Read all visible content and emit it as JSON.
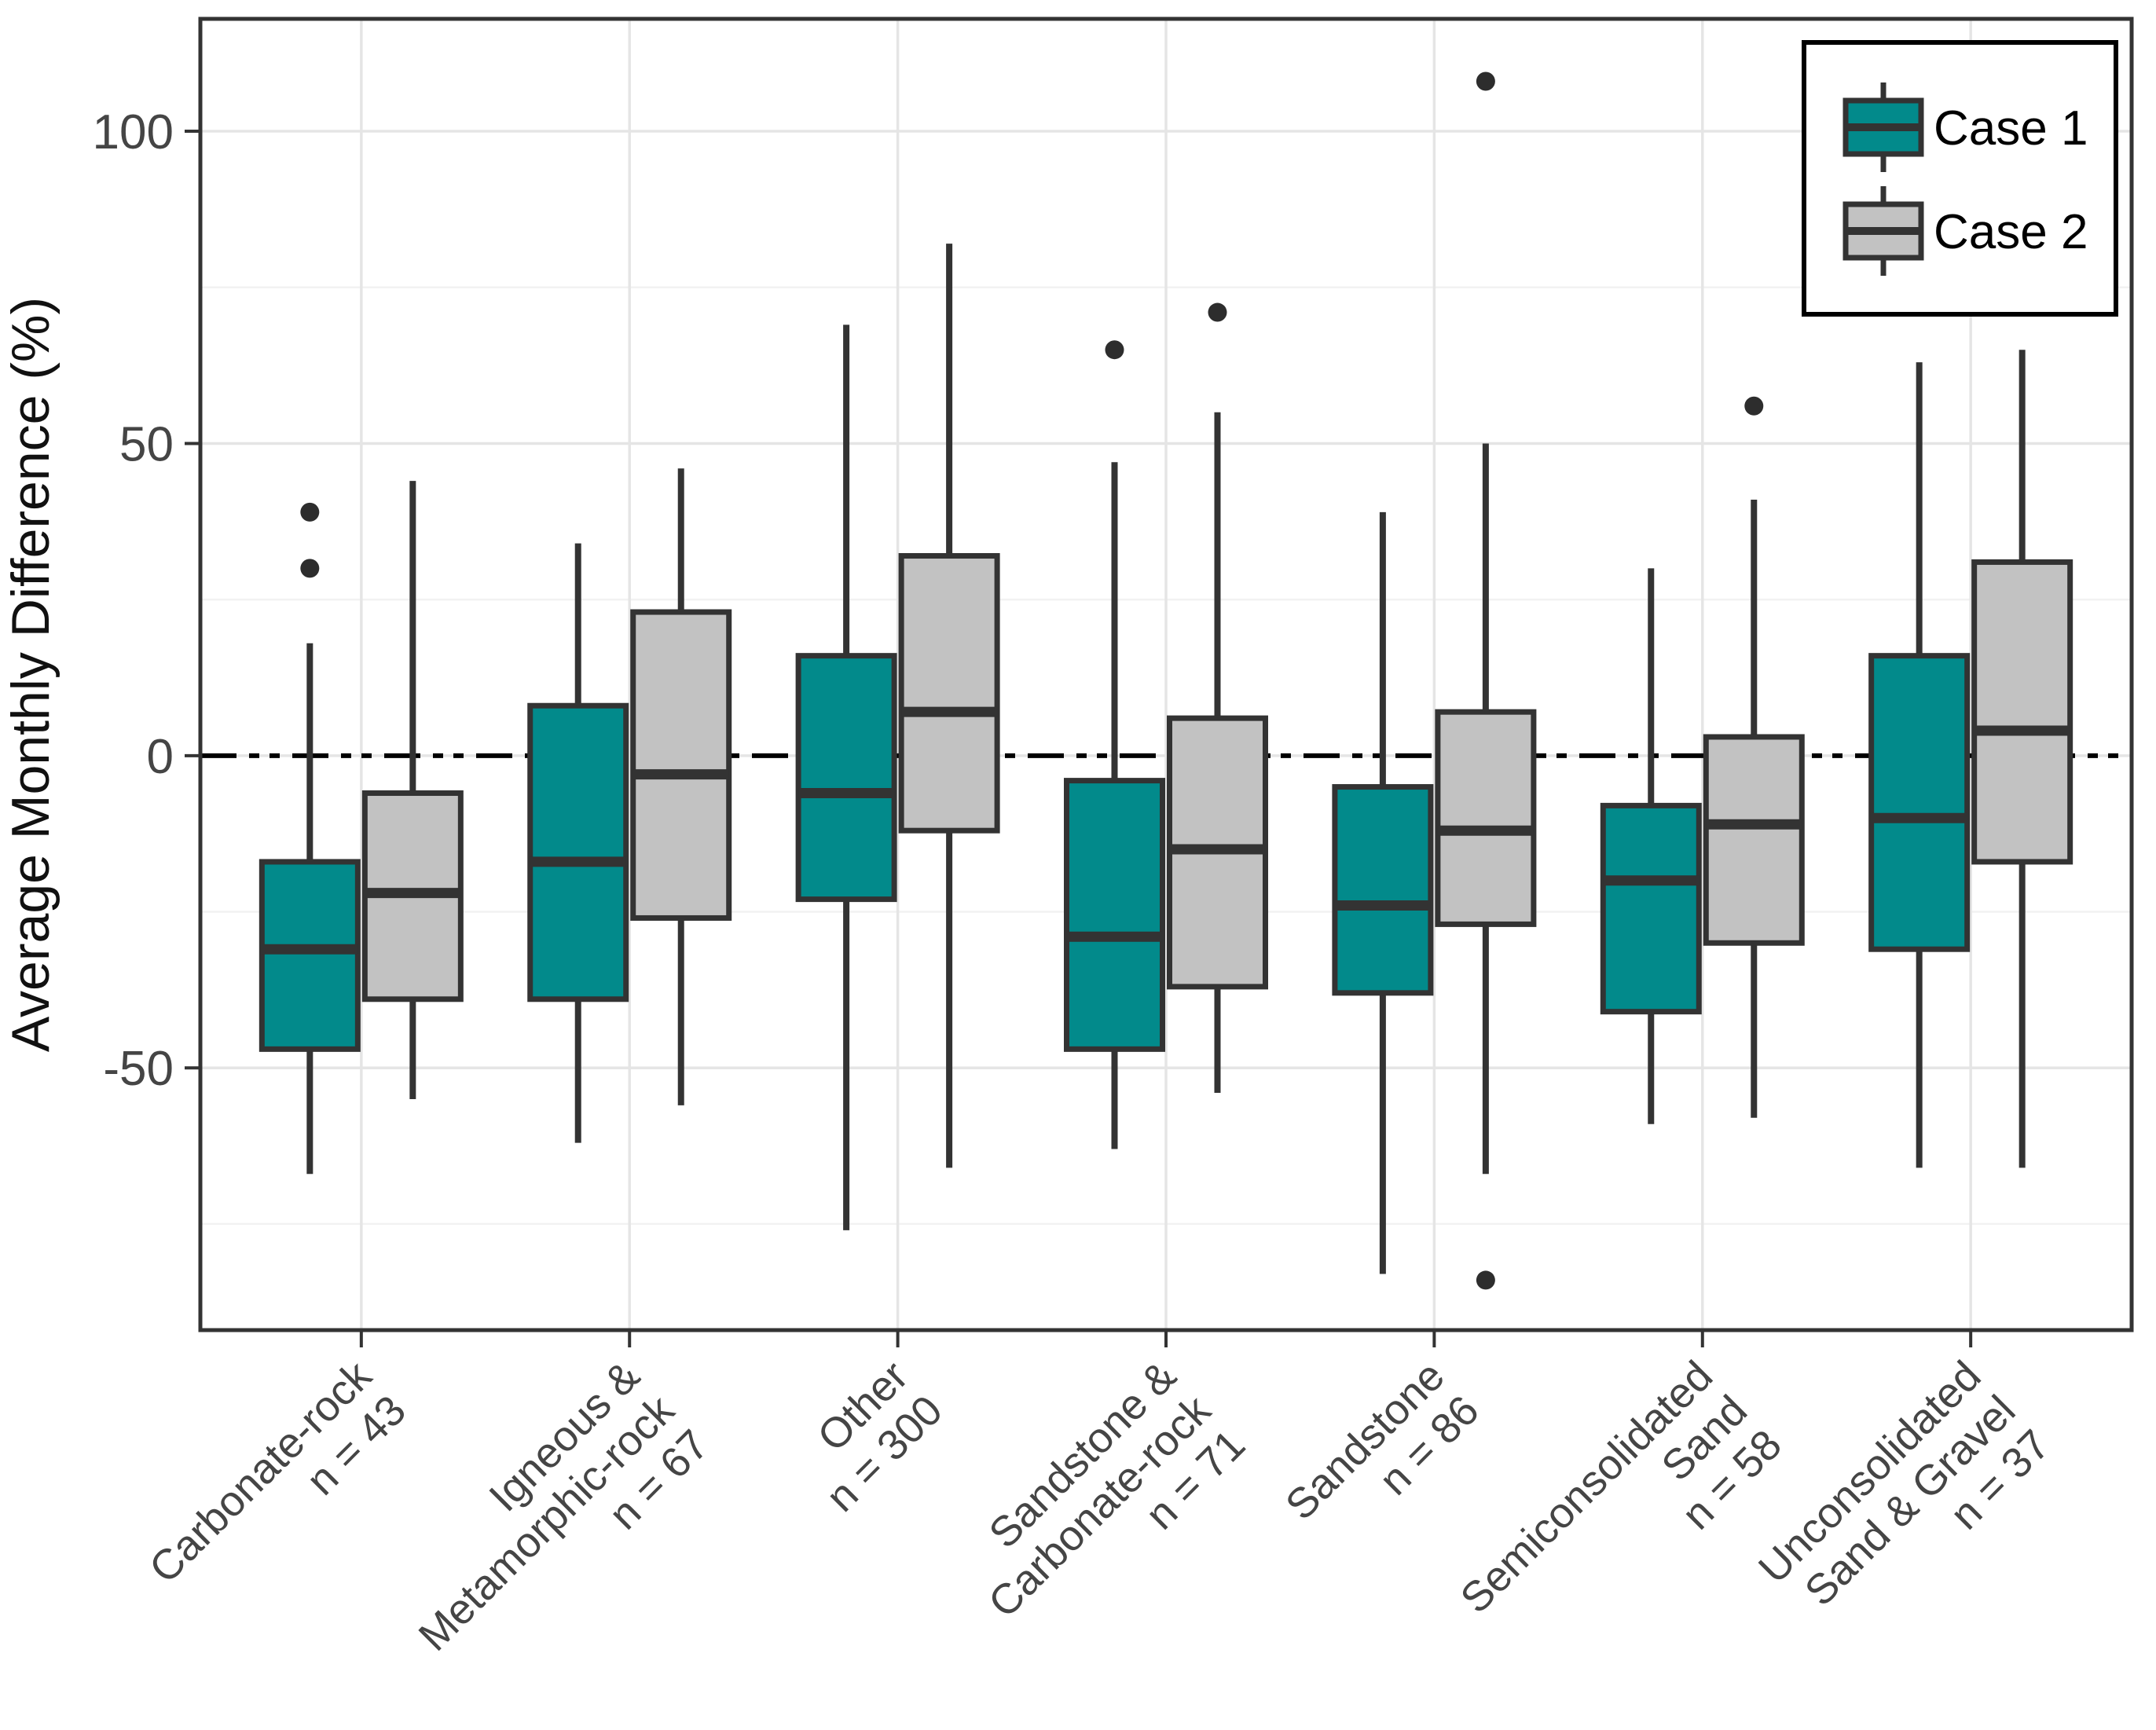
{
  "figure": {
    "y_axis_label": "Average Monthly Difference (%)",
    "legend": {
      "items": [
        {
          "label": "Case 1",
          "color": "#028a8b"
        },
        {
          "label": "Case 2",
          "color": "#c2c2c2"
        }
      ]
    }
  },
  "chart_data": {
    "type": "boxplot",
    "title": "",
    "xlabel": "",
    "ylabel": "Average Monthly Difference (%)",
    "ylim": [
      -92,
      118
    ],
    "y_major_ticks": [
      100,
      50,
      0,
      -50
    ],
    "y_minor_gridlines": [
      75,
      25,
      -25,
      -75
    ],
    "zero_reference_line": 0,
    "grid": "on",
    "legend_position": "top-right",
    "series_names": [
      "Case 1",
      "Case 2"
    ],
    "colors": {
      "case1_fill": "#028a8b",
      "case2_fill": "#c2c2c2",
      "outline": "#333333",
      "outlier": "#2d2d2d",
      "grid_major": "#e5e5e5",
      "grid_minor": "#f2f2f2",
      "panel_border": "#333333",
      "tick_text": "#454545",
      "axis_title": "#111111",
      "zero_line": "#000000"
    },
    "categories": [
      {
        "name": "Carbonate-rock",
        "label_lines": [
          "Carbonate-rock",
          "n = 43"
        ],
        "n": 43,
        "boxes": [
          {
            "series": "Case 1",
            "whisker_low": -67,
            "q1": -47,
            "median": -31,
            "q3": -17,
            "whisker_high": 18,
            "outliers": [
              30,
              39
            ]
          },
          {
            "series": "Case 2",
            "whisker_low": -55,
            "q1": -39,
            "median": -22,
            "q3": -6,
            "whisker_high": 44,
            "outliers": []
          }
        ]
      },
      {
        "name": "Igneous & Metamorphic-rock",
        "label_lines": [
          "Igneous &",
          "Metamorphic-rock",
          "n = 67"
        ],
        "n": 67,
        "boxes": [
          {
            "series": "Case 1",
            "whisker_low": -62,
            "q1": -39,
            "median": -17,
            "q3": 8,
            "whisker_high": 34,
            "outliers": []
          },
          {
            "series": "Case 2",
            "whisker_low": -56,
            "q1": -26,
            "median": -3,
            "q3": 23,
            "whisker_high": 46,
            "outliers": []
          }
        ]
      },
      {
        "name": "Other",
        "label_lines": [
          "Other",
          "n = 300"
        ],
        "n": 300,
        "boxes": [
          {
            "series": "Case 1",
            "whisker_low": -76,
            "q1": -23,
            "median": -6,
            "q3": 16,
            "whisker_high": 69,
            "outliers": []
          },
          {
            "series": "Case 2",
            "whisker_low": -66,
            "q1": -12,
            "median": 7,
            "q3": 32,
            "whisker_high": 82,
            "outliers": []
          }
        ]
      },
      {
        "name": "Sandstone & Carbonate-rock",
        "label_lines": [
          "Sandstone &",
          "Carbonate-rock",
          "n = 71"
        ],
        "n": 71,
        "boxes": [
          {
            "series": "Case 1",
            "whisker_low": -63,
            "q1": -47,
            "median": -29,
            "q3": -4,
            "whisker_high": 47,
            "outliers": [
              65
            ]
          },
          {
            "series": "Case 2",
            "whisker_low": -54,
            "q1": -37,
            "median": -15,
            "q3": 6,
            "whisker_high": 55,
            "outliers": [
              71
            ]
          }
        ]
      },
      {
        "name": "Sandstone",
        "label_lines": [
          "Sandstone",
          "n = 86"
        ],
        "n": 86,
        "boxes": [
          {
            "series": "Case 1",
            "whisker_low": -83,
            "q1": -38,
            "median": -24,
            "q3": -5,
            "whisker_high": 39,
            "outliers": []
          },
          {
            "series": "Case 2",
            "whisker_low": -67,
            "q1": -27,
            "median": -12,
            "q3": 7,
            "whisker_high": 50,
            "outliers": [
              108,
              -84
            ]
          }
        ]
      },
      {
        "name": "Semiconsolidated Sand",
        "label_lines": [
          "Semiconsolidated",
          "Sand",
          "n = 58"
        ],
        "n": 58,
        "boxes": [
          {
            "series": "Case 1",
            "whisker_low": -59,
            "q1": -41,
            "median": -20,
            "q3": -8,
            "whisker_high": 30,
            "outliers": []
          },
          {
            "series": "Case 2",
            "whisker_low": -58,
            "q1": -30,
            "median": -11,
            "q3": 3,
            "whisker_high": 41,
            "outliers": [
              56
            ]
          }
        ]
      },
      {
        "name": "Unconsolidated Sand & Gravel",
        "label_lines": [
          "Unconsolidated",
          "Sand & Gravel",
          "n = 37"
        ],
        "n": 37,
        "boxes": [
          {
            "series": "Case 1",
            "whisker_low": -66,
            "q1": -31,
            "median": -10,
            "q3": 16,
            "whisker_high": 63,
            "outliers": []
          },
          {
            "series": "Case 2",
            "whisker_low": -66,
            "q1": -17,
            "median": 4,
            "q3": 31,
            "whisker_high": 65,
            "outliers": []
          }
        ]
      }
    ]
  }
}
